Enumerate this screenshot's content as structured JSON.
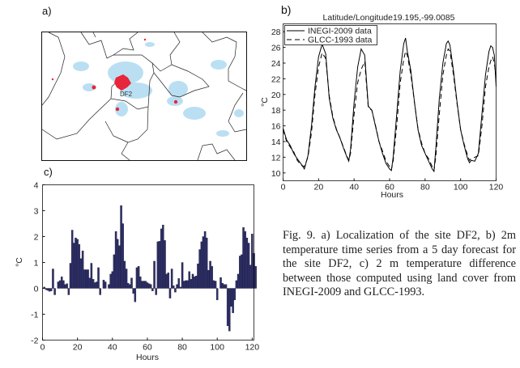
{
  "panels": {
    "a": {
      "label": "a)",
      "site_label": "DF2",
      "colors": {
        "urban": "#e8253a",
        "vegetation_sparse": "#9fd3ee",
        "border": "#222222"
      }
    },
    "b": {
      "label": "b)"
    },
    "c": {
      "label": "c)"
    }
  },
  "caption": "Fig. 9. a) Localization of the site DF2, b) 2m temperature time series from a 5 day forecast for the site DF2, c) 2 m temperature difference between those computed using land cover from INEGI-2009 and GLCC-1993.",
  "chart_data": [
    {
      "type": "line",
      "title": "Latitude/Longitude19.195,-99.0085",
      "xlabel": "Hours",
      "ylabel": "°C",
      "xlim": [
        0,
        120
      ],
      "ylim": [
        9,
        29
      ],
      "xticks": [
        0,
        20,
        40,
        60,
        80,
        100,
        120
      ],
      "yticks": [
        10,
        12,
        14,
        16,
        18,
        20,
        22,
        24,
        26,
        28
      ],
      "legend": "top-left",
      "x": [
        0,
        2,
        4,
        6,
        8,
        10,
        12,
        14,
        16,
        18,
        20,
        22,
        24,
        26,
        28,
        30,
        32,
        34,
        36,
        37,
        38,
        40,
        42,
        44,
        46,
        48,
        50,
        52,
        54,
        56,
        58,
        60,
        61,
        62,
        64,
        66,
        68,
        69,
        70,
        72,
        74,
        76,
        78,
        80,
        82,
        84,
        85,
        86,
        88,
        90,
        92,
        93,
        94,
        96,
        98,
        100,
        102,
        104,
        105,
        106,
        108,
        110,
        112,
        114,
        116,
        117,
        118,
        119,
        120
      ],
      "series": [
        {
          "name": "INEGI-2009 data",
          "style": "solid",
          "color": "#000000",
          "values": [
            15.7,
            14.2,
            13.5,
            12.5,
            11.8,
            11.2,
            10.5,
            12.2,
            16,
            21,
            24.8,
            26.4,
            25.2,
            19.5,
            17,
            15.5,
            14.5,
            13.2,
            12,
            11.5,
            13,
            19,
            23.5,
            25.8,
            25,
            18.5,
            18,
            16,
            14,
            12.5,
            11.2,
            10.5,
            10.3,
            12,
            17.5,
            23,
            26.5,
            27.2,
            25.5,
            23,
            19,
            15.5,
            13.5,
            12.5,
            11.5,
            10.5,
            10.2,
            13,
            19.5,
            24,
            26.5,
            26.8,
            26.3,
            23,
            19,
            15.5,
            13.5,
            11.8,
            11.3,
            11.6,
            11.5,
            12.5,
            17.5,
            22.5,
            25.5,
            26.2,
            26,
            25,
            21
          ]
        },
        {
          "name": "GLCC-1993 data",
          "style": "dashed",
          "color": "#000000",
          "values": [
            15.5,
            14,
            13.3,
            12.7,
            11.6,
            11,
            10.8,
            12,
            15.2,
            20,
            23.5,
            25.3,
            24.6,
            19.8,
            17.2,
            15.6,
            14.5,
            13.3,
            12.1,
            11.6,
            12.5,
            17.5,
            21.5,
            23.2,
            24.2,
            18.3,
            18,
            16.1,
            14,
            12.8,
            11.5,
            10.8,
            10.4,
            11.5,
            16,
            21.5,
            24.5,
            25.5,
            25,
            22.5,
            19,
            15.6,
            13.8,
            12.5,
            11.8,
            10.8,
            10.3,
            12,
            17.5,
            22.5,
            25,
            25.8,
            25.5,
            22.5,
            18.8,
            15.5,
            13.7,
            12.2,
            11.6,
            11.8,
            12,
            12.2,
            16,
            21,
            23.5,
            24.3,
            24.8,
            24,
            22
          ]
        }
      ],
      "grid": false
    },
    {
      "type": "bar",
      "xlabel": "Hours",
      "ylabel": "°C",
      "xlim": [
        0,
        121
      ],
      "ylim": [
        -2,
        4
      ],
      "xticks": [
        0,
        20,
        40,
        60,
        80,
        100,
        120
      ],
      "yticks": [
        -2,
        -1,
        0,
        1,
        2,
        3,
        4
      ],
      "bar_color": "#2e2f6e",
      "grid": false,
      "x_start": 1,
      "values": [
        0.05,
        -0.05,
        -0.08,
        -0.12,
        -0.1,
        0.75,
        -0.25,
        0.0,
        0.25,
        0.3,
        0.45,
        0.3,
        0.15,
        0.18,
        -0.25,
        0.97,
        2.25,
        1.75,
        1.95,
        1.9,
        1.7,
        1.15,
        1.45,
        0.72,
        0.72,
        0.72,
        0.4,
        0.97,
        0.35,
        0.22,
        0.25,
        0.8,
        -0.25,
        0.0,
        0.32,
        0.25,
        0.0,
        0.15,
        0.55,
        0.65,
        1.3,
        2.2,
        1.9,
        1.65,
        3.2,
        2.5,
        1.05,
        0.75,
        0.2,
        0.15,
        0.4,
        -0.2,
        -0.52,
        0.8,
        0.85,
        0.45,
        0.28,
        0.28,
        0.28,
        0.22,
        0.18,
        0.15,
        -0.1,
        1.05,
        -0.25,
        1.8,
        1.82,
        2.3,
        2.45,
        1.85,
        0.55,
        0.6,
        -0.38,
        0.75,
        0.1,
        -0.15,
        0.15,
        0.38,
        0.05,
        1.0,
        0.28,
        0.3,
        0.3,
        0.65,
        0.35,
        0.55,
        0.45,
        0.48,
        0.95,
        1.5,
        1.8,
        2.0,
        2.2,
        1.95,
        0.7,
        1.05,
        0.85,
        0.3,
        0.28,
        -0.45,
        0.0,
        0.42,
        0.2,
        0.15,
        0.15,
        -1.45,
        -1.65,
        -0.7,
        -0.95,
        -0.45,
        0.3,
        0.55,
        1.25,
        1.3,
        2.35,
        2.2,
        1.95,
        1.75,
        0.9,
        2.1,
        1.35,
        0.85
      ]
    }
  ]
}
